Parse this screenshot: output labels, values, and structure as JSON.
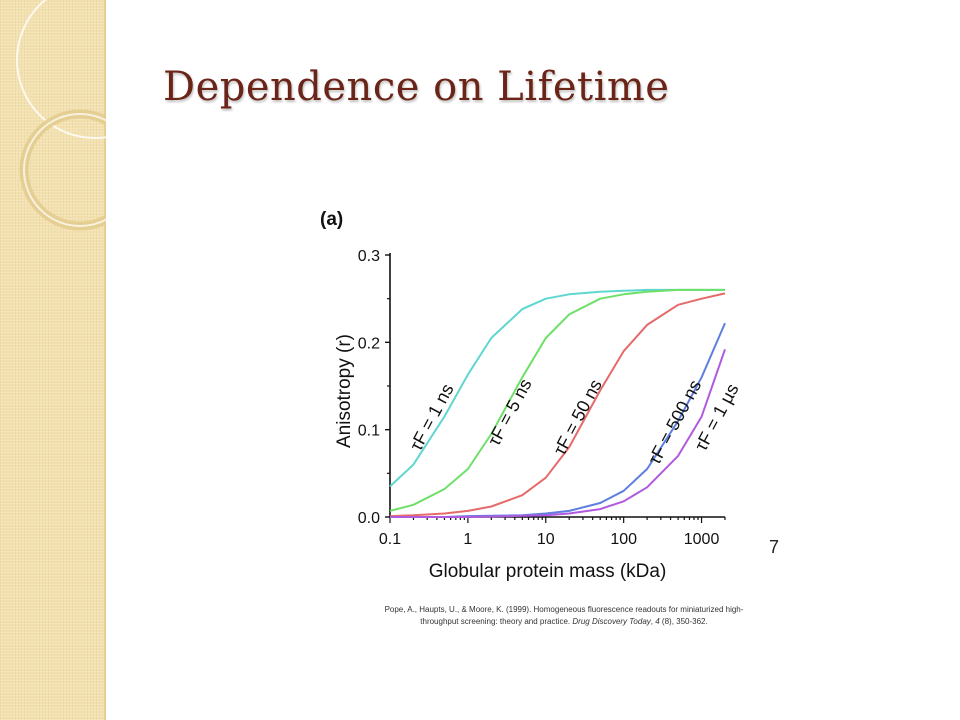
{
  "slide": {
    "title": "Dependence on Lifetime",
    "page_number": "7",
    "citation": {
      "lead": "Pope, A., Haupts, U., & Moore, K. (1999). Homogeneous fluorescence readouts for miniaturized high-throughput screening: theory and practice.",
      "journal": "Drug Discovery Today",
      "volume_prefix": ", ",
      "volume": "4",
      "tail": " (8), 350-362."
    }
  },
  "theme": {
    "title_color": "#6b2418",
    "band_color": "#f3e1b0"
  },
  "chart_data": {
    "type": "line",
    "panel_label": "(a)",
    "xlabel": "Globular protein mass (kDa)",
    "ylabel": "Anisotropy (r)",
    "x_scale": "log",
    "xlim": [
      0.1,
      2000
    ],
    "ylim": [
      0,
      0.3
    ],
    "x_ticks": [
      0.1,
      1,
      10,
      100,
      1000
    ],
    "x_tick_labels": [
      "0.1",
      "1",
      "10",
      "100",
      "1000"
    ],
    "y_ticks": [
      0.0,
      0.1,
      0.2,
      0.3
    ],
    "y_tick_labels": [
      "0.0",
      "0.1",
      "0.2",
      "0.3"
    ],
    "grid": false,
    "series": [
      {
        "name": "τF = 1 ns",
        "color": "#5fd6d0",
        "x": [
          0.1,
          0.2,
          0.5,
          1,
          2,
          5,
          10,
          20,
          50,
          100,
          200,
          500,
          1000,
          2000
        ],
        "y": [
          0.035,
          0.06,
          0.115,
          0.163,
          0.205,
          0.238,
          0.25,
          0.255,
          0.258,
          0.259,
          0.26,
          0.26,
          0.26,
          0.26
        ]
      },
      {
        "name": "τF = 5 ns",
        "color": "#6ee068",
        "x": [
          0.1,
          0.2,
          0.5,
          1,
          2,
          5,
          10,
          20,
          50,
          100,
          200,
          500,
          1000,
          2000
        ],
        "y": [
          0.007,
          0.014,
          0.032,
          0.055,
          0.095,
          0.16,
          0.205,
          0.232,
          0.25,
          0.255,
          0.258,
          0.26,
          0.26,
          0.26
        ]
      },
      {
        "name": "τF = 50 ns",
        "color": "#e56a6a",
        "x": [
          0.1,
          0.2,
          0.5,
          1,
          2,
          5,
          10,
          20,
          50,
          100,
          200,
          500,
          1000,
          2000
        ],
        "y": [
          0.001,
          0.002,
          0.004,
          0.007,
          0.012,
          0.025,
          0.045,
          0.08,
          0.145,
          0.19,
          0.22,
          0.243,
          0.25,
          0.256
        ]
      },
      {
        "name": "τF = 500 ns",
        "color": "#5f7fe0",
        "x": [
          0.1,
          0.5,
          1,
          5,
          10,
          20,
          50,
          100,
          200,
          500,
          1000,
          2000
        ],
        "y": [
          0.0,
          0.0,
          0.001,
          0.002,
          0.004,
          0.007,
          0.016,
          0.03,
          0.055,
          0.11,
          0.16,
          0.222
        ]
      },
      {
        "name": "τF = 1 µs",
        "color": "#b05ae0",
        "x": [
          0.1,
          1,
          10,
          20,
          50,
          100,
          200,
          500,
          1000,
          2000
        ],
        "y": [
          0.0,
          0.0,
          0.002,
          0.004,
          0.009,
          0.018,
          0.034,
          0.07,
          0.115,
          0.192
        ]
      }
    ]
  }
}
